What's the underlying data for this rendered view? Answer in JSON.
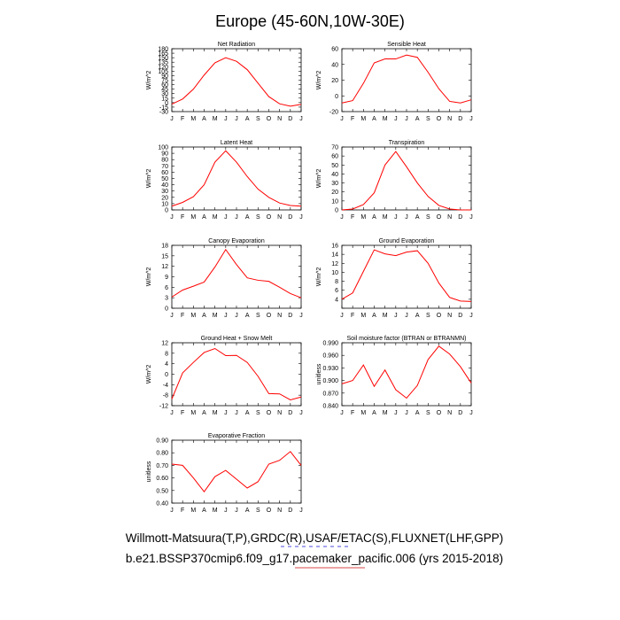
{
  "title": "Europe (45-60N,10W-30E)",
  "footer": {
    "line1": "Willmott-Matsuura(T,P),GRDC(R),USAF/ETAC(S),FLUXNET(LHF,GPP)",
    "line2": "b.e21.BSSP370cmip6.f09_g17.pacemaker_pacific.006 (yrs 2015-2018)",
    "underline1_color": "#4b4bdf",
    "underline2_color": "#d94a4a"
  },
  "colors": {
    "series": "#ff0000",
    "axes": "#000000"
  },
  "chart_data": [
    {
      "type": "line",
      "title": "Net Radiation",
      "ylabel": "W/m^2",
      "categories": [
        "J",
        "F",
        "M",
        "A",
        "M",
        "J",
        "J",
        "A",
        "S",
        "O",
        "N",
        "D",
        "J"
      ],
      "ylim": [
        -30,
        180
      ],
      "yticks": [
        -30,
        -15,
        0,
        15,
        30,
        45,
        60,
        75,
        90,
        105,
        120,
        135,
        150,
        165,
        180
      ],
      "ytick_labels": [
        "-30",
        "-15",
        "0",
        "15",
        "30",
        "45",
        "60",
        "75",
        "90",
        "105",
        "120",
        "135",
        "150",
        "165",
        "180"
      ],
      "values": [
        -5,
        12,
        45,
        92,
        133,
        150,
        138,
        110,
        65,
        20,
        -4,
        -12,
        -6
      ]
    },
    {
      "type": "line",
      "title": "Sensible Heat",
      "ylabel": "W/m^2",
      "categories": [
        "J",
        "F",
        "M",
        "A",
        "M",
        "J",
        "J",
        "A",
        "S",
        "O",
        "N",
        "D",
        "J"
      ],
      "ylim": [
        -20,
        60
      ],
      "yticks": [
        -20,
        0,
        20,
        40,
        60
      ],
      "ytick_labels": [
        "-20",
        "0",
        "20",
        "40",
        "60"
      ],
      "values": [
        -9,
        -6,
        16,
        42,
        47,
        47,
        52,
        49,
        30,
        9,
        -7,
        -9,
        -5
      ]
    },
    {
      "type": "line",
      "title": "Latent Heat",
      "ylabel": "W/m^2",
      "categories": [
        "J",
        "F",
        "M",
        "A",
        "M",
        "J",
        "J",
        "A",
        "S",
        "O",
        "N",
        "D",
        "J"
      ],
      "ylim": [
        0,
        100
      ],
      "yticks": [
        0,
        10,
        20,
        30,
        40,
        50,
        60,
        70,
        80,
        90,
        100
      ],
      "ytick_labels": [
        "0",
        "10",
        "20",
        "30",
        "40",
        "50",
        "60",
        "70",
        "80",
        "90",
        "100"
      ],
      "values": [
        6,
        12,
        21,
        40,
        76,
        94,
        76,
        53,
        33,
        20,
        11,
        7,
        6
      ]
    },
    {
      "type": "line",
      "title": "Transpiration",
      "ylabel": "W/m^2",
      "categories": [
        "J",
        "F",
        "M",
        "A",
        "M",
        "J",
        "J",
        "A",
        "S",
        "O",
        "N",
        "D",
        "J"
      ],
      "ylim": [
        0,
        70
      ],
      "yticks": [
        0,
        10,
        20,
        30,
        40,
        50,
        60,
        70
      ],
      "ytick_labels": [
        "0",
        "10",
        "20",
        "30",
        "40",
        "50",
        "60",
        "70"
      ],
      "values": [
        0,
        1,
        6,
        19,
        50,
        65,
        48,
        30,
        15,
        5,
        1,
        0,
        0
      ]
    },
    {
      "type": "line",
      "title": "Canopy Evaporation",
      "ylabel": "W/m^2",
      "categories": [
        "J",
        "F",
        "M",
        "A",
        "M",
        "J",
        "J",
        "A",
        "S",
        "O",
        "N",
        "D",
        "J"
      ],
      "ylim": [
        0,
        18
      ],
      "yticks": [
        0,
        3,
        6,
        9,
        12,
        15,
        18
      ],
      "ytick_labels": [
        "0",
        "3",
        "6",
        "9",
        "12",
        "15",
        "18"
      ],
      "values": [
        3.2,
        5.2,
        6.3,
        7.5,
        11.8,
        16.8,
        12.5,
        8.7,
        8.0,
        7.7,
        6.0,
        4.2,
        3.0
      ]
    },
    {
      "type": "line",
      "title": "Ground Evaporation",
      "ylabel": "W/m^2",
      "categories": [
        "J",
        "F",
        "M",
        "A",
        "M",
        "J",
        "J",
        "A",
        "S",
        "O",
        "N",
        "D",
        "J"
      ],
      "ylim": [
        2,
        16
      ],
      "yticks": [
        2,
        4,
        6,
        8,
        10,
        12,
        14,
        16
      ],
      "ytick_labels": [
        "",
        "4",
        "6",
        "8",
        "10",
        "12",
        "14",
        "16"
      ],
      "values": [
        4.0,
        5.4,
        10.2,
        15.0,
        14.1,
        13.7,
        14.5,
        14.8,
        12.0,
        7.6,
        4.4,
        3.6,
        3.5
      ]
    },
    {
      "type": "line",
      "title": "Ground Heat + Snow Melt",
      "ylabel": "W/m^2",
      "categories": [
        "J",
        "F",
        "M",
        "A",
        "M",
        "J",
        "J",
        "A",
        "S",
        "O",
        "N",
        "D",
        "J"
      ],
      "ylim": [
        -12,
        12
      ],
      "yticks": [
        -12,
        -8,
        -4,
        0,
        4,
        8,
        12
      ],
      "ytick_labels": [
        "-12",
        "-8",
        "-4",
        "0",
        "4",
        "8",
        "12"
      ],
      "values": [
        -9.5,
        0.5,
        4.5,
        8.3,
        9.8,
        7.1,
        7.2,
        4.5,
        -0.8,
        -7.4,
        -7.5,
        -9.8,
        -8.7
      ]
    },
    {
      "type": "line",
      "title": "Soil moisture factor (BTRAN or BTRANMN)",
      "ylabel": "unitless",
      "categories": [
        "J",
        "F",
        "M",
        "A",
        "M",
        "J",
        "J",
        "A",
        "S",
        "O",
        "N",
        "D",
        "J"
      ],
      "ylim": [
        0.84,
        0.99
      ],
      "yticks": [
        0.84,
        0.87,
        0.9,
        0.93,
        0.96,
        0.99
      ],
      "ytick_labels": [
        "0.840",
        "0.870",
        "0.900",
        "0.930",
        "0.960",
        "0.990"
      ],
      "values": [
        0.892,
        0.9,
        0.937,
        0.886,
        0.925,
        0.878,
        0.858,
        0.888,
        0.95,
        0.982,
        0.963,
        0.933,
        0.894
      ]
    },
    {
      "type": "line",
      "title": "Evaporative Fraction",
      "ylabel": "unitless",
      "categories": [
        "J",
        "F",
        "M",
        "A",
        "M",
        "J",
        "J",
        "A",
        "S",
        "O",
        "N",
        "D",
        "J"
      ],
      "ylim": [
        0.4,
        0.9
      ],
      "yticks": [
        0.4,
        0.5,
        0.6,
        0.7,
        0.8,
        0.9
      ],
      "ytick_labels": [
        "0.40",
        "0.50",
        "0.60",
        "0.70",
        "0.80",
        "0.90"
      ],
      "values": [
        0.71,
        0.7,
        0.6,
        0.49,
        0.61,
        0.66,
        0.59,
        0.52,
        0.57,
        0.71,
        0.74,
        0.81,
        0.7
      ]
    }
  ]
}
